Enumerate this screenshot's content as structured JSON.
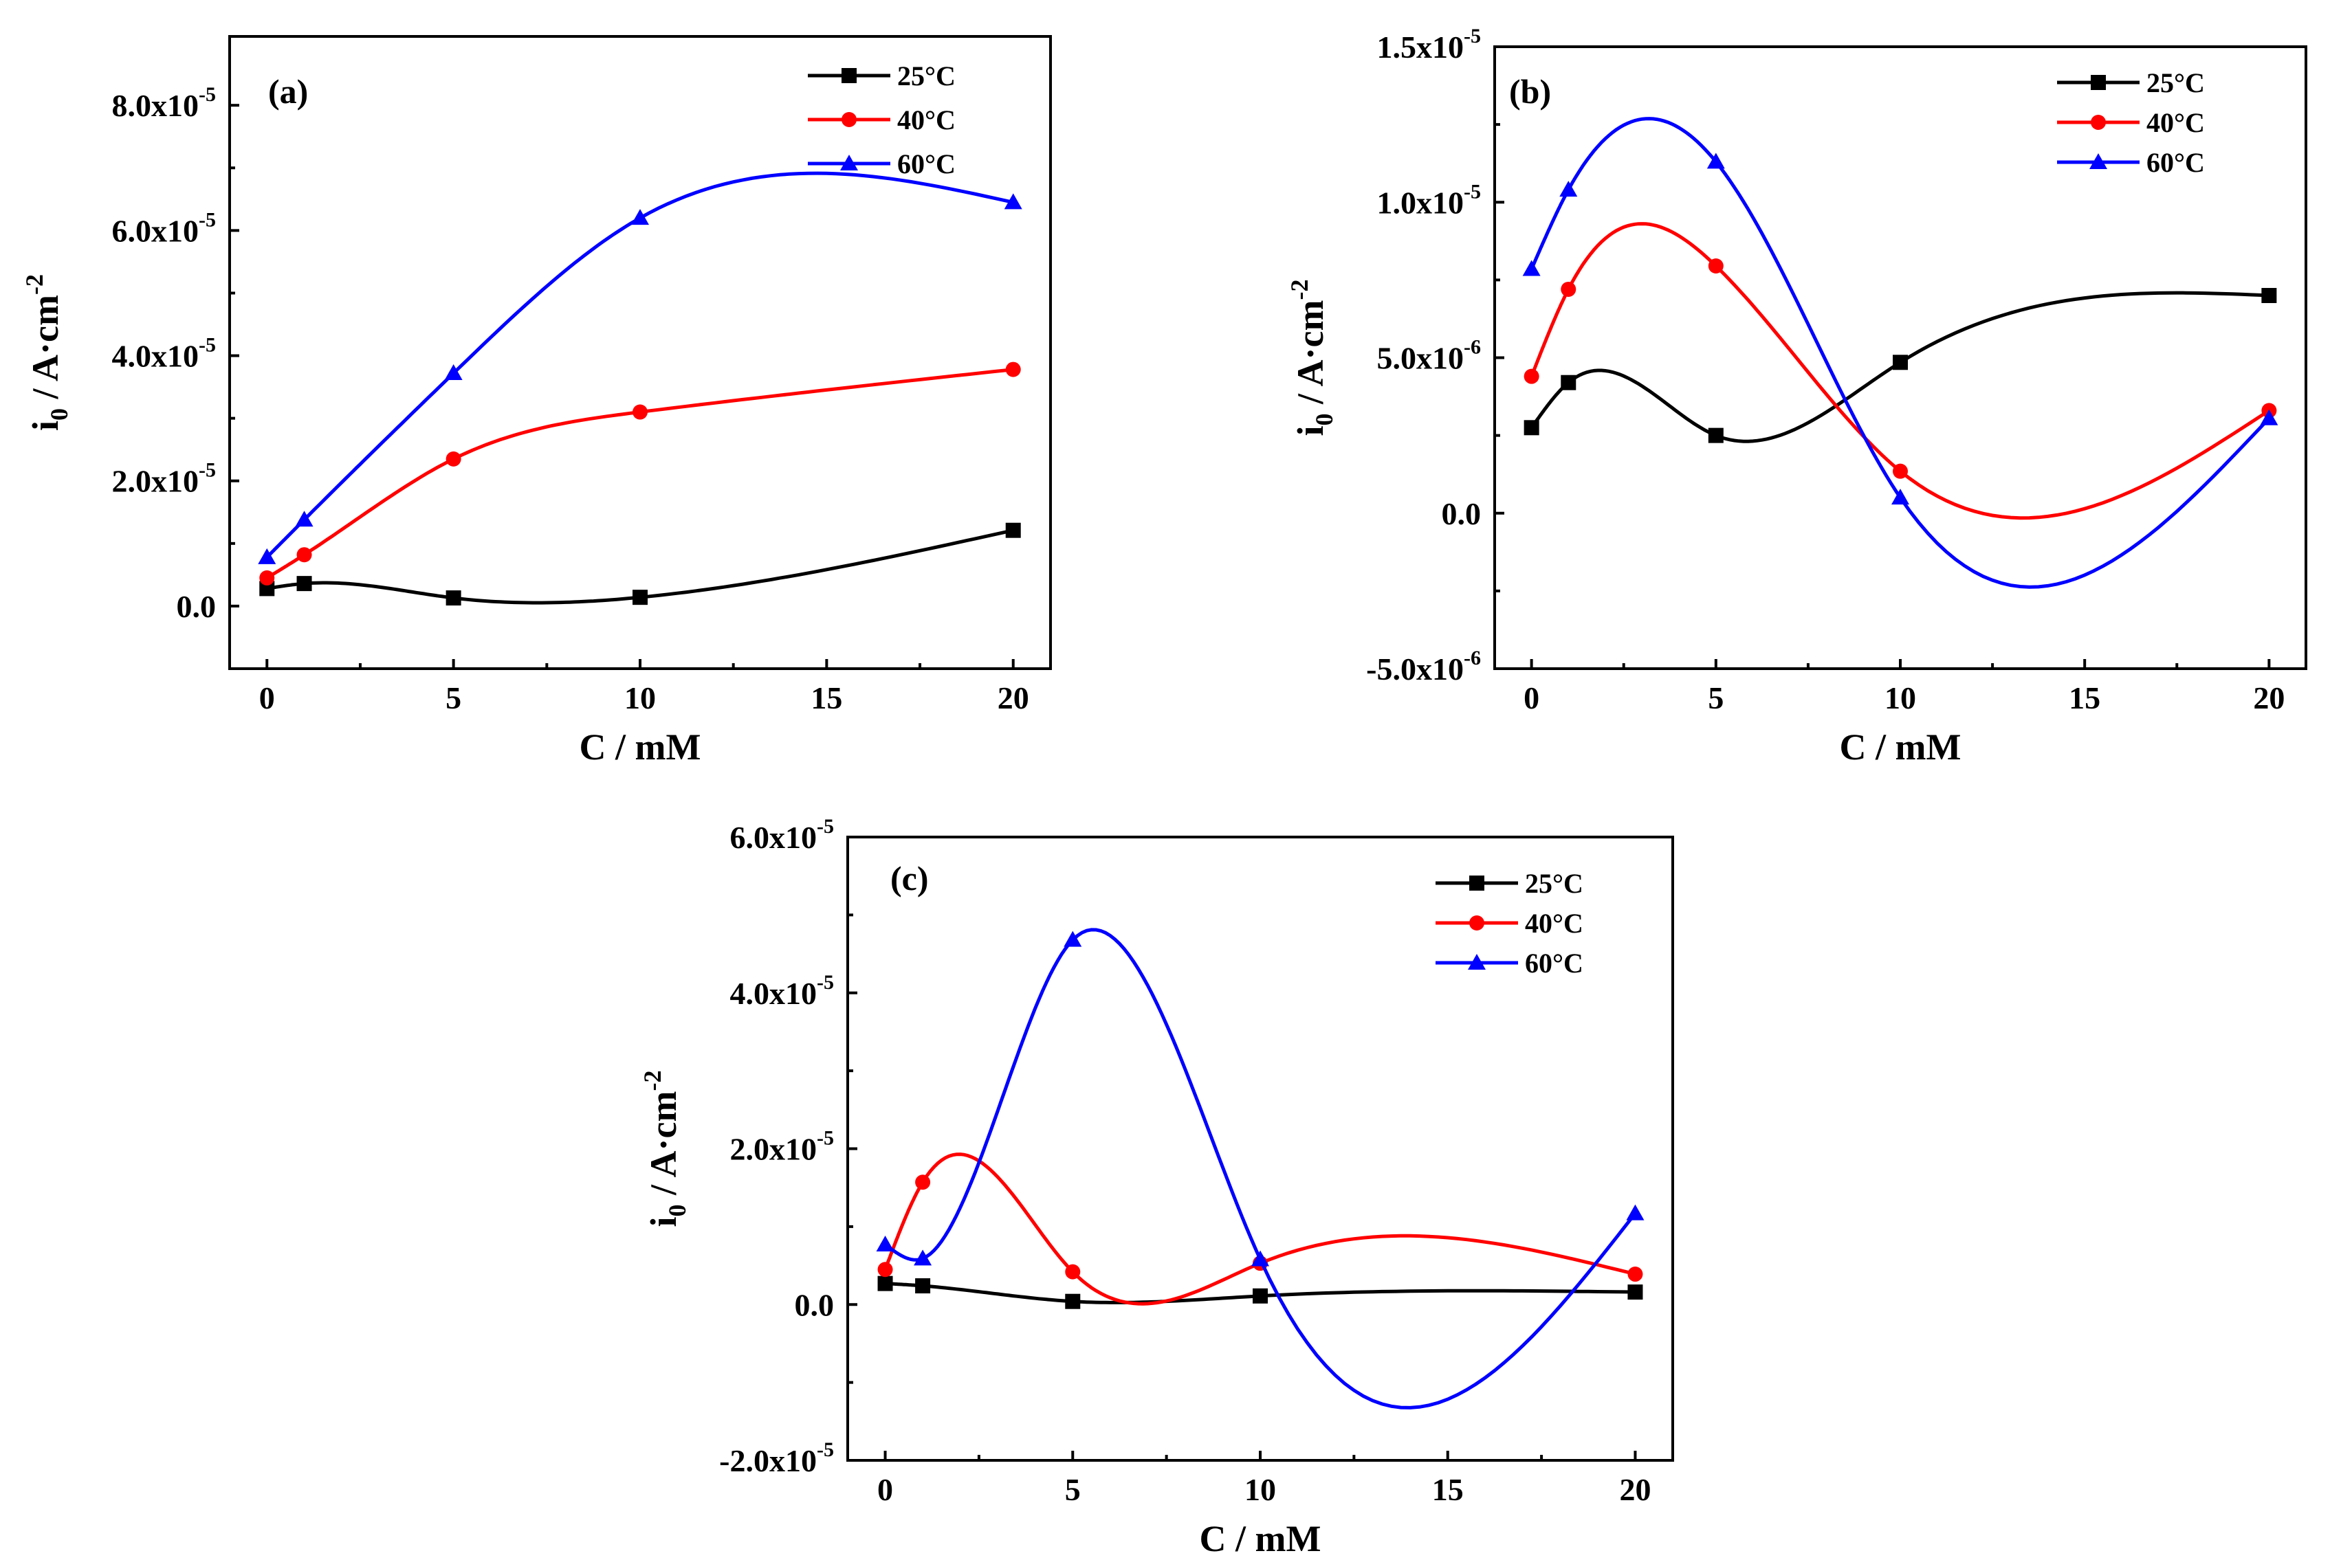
{
  "chart_data": [
    {
      "type": "line",
      "panel_label": "(a)",
      "xlabel": "C / mM",
      "ylabel_main": "i",
      "ylabel_sub": "0",
      "ylabel_rest": " / A·cm",
      "ylabel_sup": "-2",
      "xlim": [
        -1,
        21
      ],
      "ylim": [
        -1e-05,
        9.1e-05
      ],
      "xticks": [
        0,
        5,
        10,
        15,
        20
      ],
      "xtick_labels": [
        "0",
        "5",
        "10",
        "15",
        "20"
      ],
      "yticks": [
        0,
        2e-05,
        4e-05,
        6e-05,
        8e-05
      ],
      "ytick_labels": [
        {
          "base": "0.0",
          "exp": ""
        },
        {
          "base": "2.0x10",
          "exp": "-5"
        },
        {
          "base": "4.0x10",
          "exp": "-5"
        },
        {
          "base": "6.0x10",
          "exp": "-5"
        },
        {
          "base": "8.0x10",
          "exp": "-5"
        }
      ],
      "legend_position": "top-right",
      "x": [
        0,
        1,
        5,
        10,
        20
      ],
      "series": [
        {
          "name": "25°C",
          "color": "#000000",
          "marker": "square",
          "values": [
            2.8e-06,
            3.6e-06,
            1.3e-06,
            1.4e-06,
            1.21e-05
          ]
        },
        {
          "name": "40°C",
          "color": "#ff0000",
          "marker": "circle",
          "values": [
            4.5e-06,
            8.2e-06,
            2.35e-05,
            3.1e-05,
            3.78e-05
          ]
        },
        {
          "name": "60°C",
          "color": "#0000ff",
          "marker": "triangle",
          "values": [
            7.8e-06,
            1.38e-05,
            3.72e-05,
            6.2e-05,
            6.45e-05
          ]
        }
      ]
    },
    {
      "type": "line",
      "panel_label": "(b)",
      "xlabel": "C / mM",
      "ylabel_main": "i",
      "ylabel_sub": "0",
      "ylabel_rest": " / A·cm",
      "ylabel_sup": "-2",
      "xlim": [
        -1,
        21
      ],
      "ylim": [
        -5e-06,
        1.5e-05
      ],
      "xticks": [
        0,
        5,
        10,
        15,
        20
      ],
      "xtick_labels": [
        "0",
        "5",
        "10",
        "15",
        "20"
      ],
      "yticks": [
        -5e-06,
        0,
        5e-06,
        1e-05,
        1.5e-05
      ],
      "ytick_labels": [
        {
          "base": "-5.0x10",
          "exp": "-6"
        },
        {
          "base": "0.0",
          "exp": ""
        },
        {
          "base": "5.0x10",
          "exp": "-6"
        },
        {
          "base": "1.0x10",
          "exp": "-5"
        },
        {
          "base": "1.5x10",
          "exp": "-5"
        }
      ],
      "legend_position": "top-right",
      "x": [
        0,
        1,
        5,
        10,
        20
      ],
      "series": [
        {
          "name": "25°C",
          "color": "#000000",
          "marker": "square",
          "values": [
            2.75e-06,
            4.2e-06,
            2.5e-06,
            4.85e-06,
            7e-06
          ]
        },
        {
          "name": "40°C",
          "color": "#ff0000",
          "marker": "circle",
          "values": [
            4.4e-06,
            7.2e-06,
            7.95e-06,
            1.35e-06,
            3.3e-06
          ]
        },
        {
          "name": "60°C",
          "color": "#0000ff",
          "marker": "triangle",
          "values": [
            7.85e-06,
            1.04e-05,
            1.13e-05,
            5e-07,
            3.05e-06
          ]
        }
      ]
    },
    {
      "type": "line",
      "panel_label": "(c)",
      "xlabel": "C / mM",
      "ylabel_main": "i",
      "ylabel_sub": "0",
      "ylabel_rest": " / A·cm",
      "ylabel_sup": "-2",
      "xlim": [
        -1,
        21
      ],
      "ylim": [
        -2e-05,
        6e-05
      ],
      "xticks": [
        0,
        5,
        10,
        15,
        20
      ],
      "xtick_labels": [
        "0",
        "5",
        "10",
        "15",
        "20"
      ],
      "yticks": [
        -2e-05,
        0,
        2e-05,
        4e-05,
        6e-05
      ],
      "ytick_labels": [
        {
          "base": "-2.0x10",
          "exp": "-5"
        },
        {
          "base": "0.0",
          "exp": ""
        },
        {
          "base": "2.0x10",
          "exp": "-5"
        },
        {
          "base": "4.0x10",
          "exp": "-5"
        },
        {
          "base": "6.0x10",
          "exp": "-5"
        }
      ],
      "legend_position": "top-right",
      "x": [
        0,
        1,
        5,
        10,
        20
      ],
      "series": [
        {
          "name": "25°C",
          "color": "#000000",
          "marker": "square",
          "values": [
            2.7e-06,
            2.4e-06,
            4e-07,
            1.1e-06,
            1.6e-06
          ]
        },
        {
          "name": "40°C",
          "color": "#ff0000",
          "marker": "circle",
          "values": [
            4.5e-06,
            1.57e-05,
            4.2e-06,
            5.3e-06,
            3.9e-06
          ]
        },
        {
          "name": "60°C",
          "color": "#0000ff",
          "marker": "triangle",
          "values": [
            7.7e-06,
            5.9e-06,
            4.68e-05,
            5.8e-06,
            1.17e-05
          ]
        }
      ]
    }
  ]
}
